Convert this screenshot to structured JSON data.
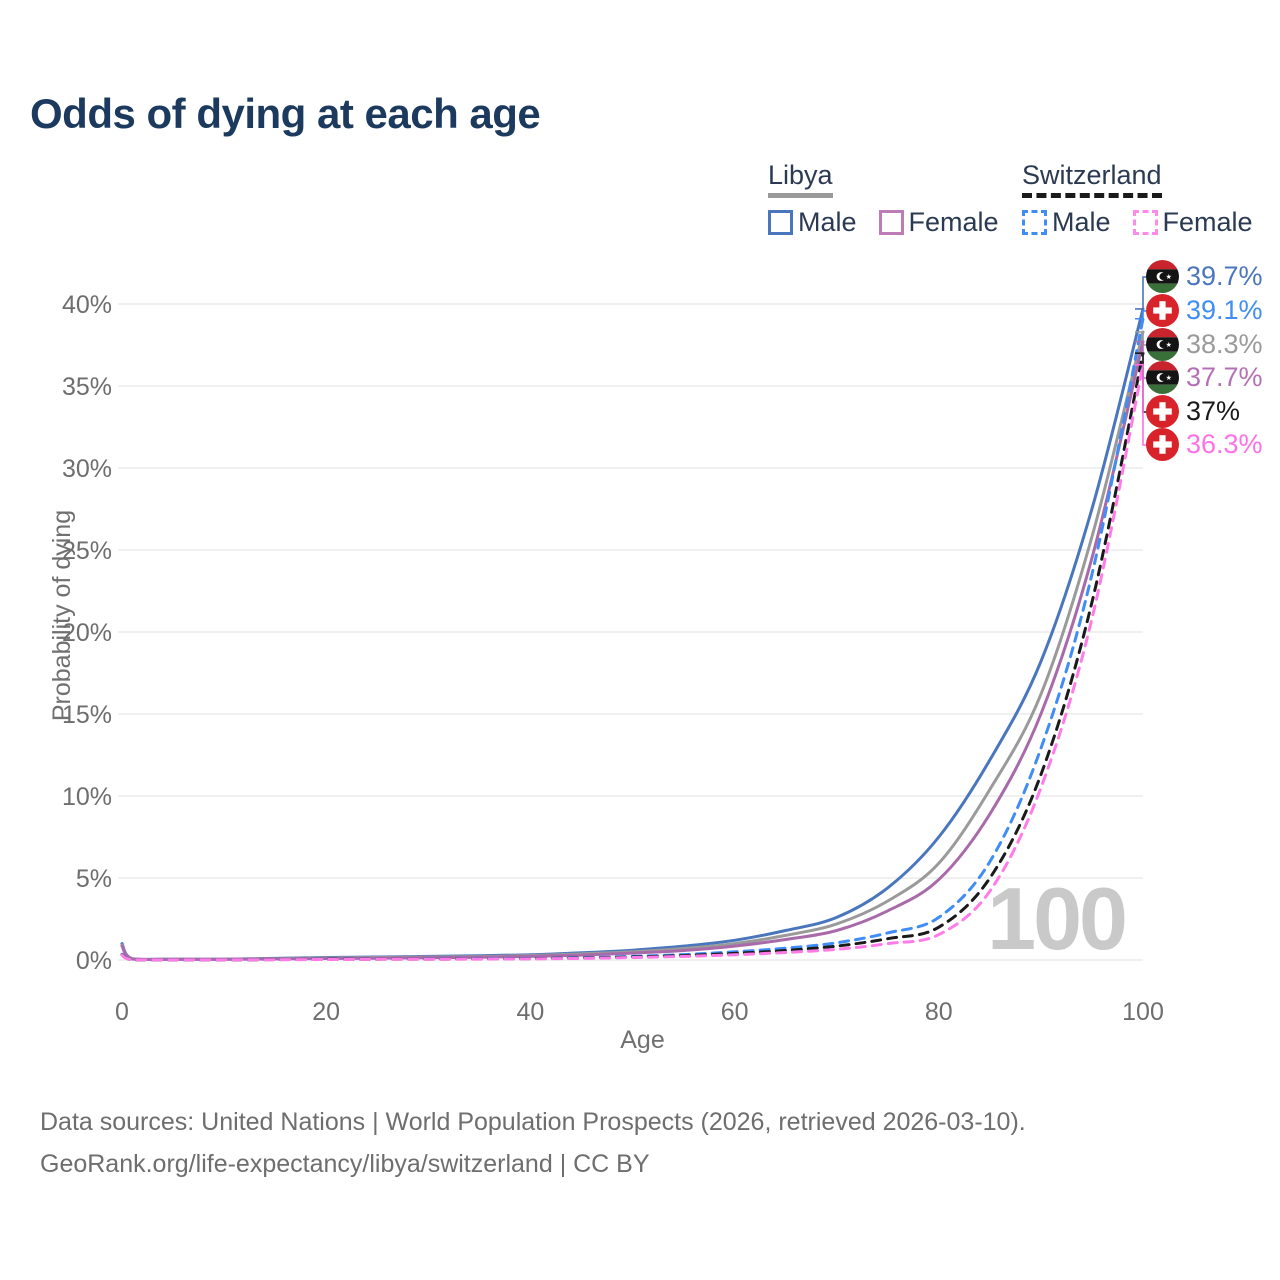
{
  "title": "Odds of dying at each age",
  "legend": {
    "groups": [
      {
        "country": "Libya",
        "line_style": "solid",
        "underline_color": "#9a9a9a",
        "items": [
          {
            "label": "Male",
            "color": "#4a76be"
          },
          {
            "label": "Female",
            "color": "#bd7cb5"
          }
        ]
      },
      {
        "country": "Switzerland",
        "line_style": "dashed",
        "underline_color": "#1a1a1a",
        "items": [
          {
            "label": "Male",
            "color": "#3f8df5"
          },
          {
            "label": "Female",
            "color": "#ff8ae9"
          }
        ]
      }
    ]
  },
  "watermark": "100",
  "axes": {
    "x_title": "Age",
    "y_title": "Probability of dying"
  },
  "chart_data": {
    "type": "line",
    "title": "Odds of dying at each age",
    "xlabel": "Age",
    "ylabel": "Probability of dying",
    "xlim": [
      0,
      100
    ],
    "ylim_pct": [
      0,
      42
    ],
    "x_ticks": [
      0,
      20,
      40,
      60,
      80,
      100
    ],
    "y_ticks_pct": [
      0,
      5,
      10,
      15,
      20,
      25,
      30,
      35,
      40
    ],
    "grid": "horizontal only",
    "legend_position": "top-right",
    "x_sample_ages": [
      0,
      1,
      5,
      10,
      15,
      20,
      25,
      30,
      35,
      40,
      45,
      50,
      55,
      60,
      65,
      70,
      75,
      80,
      85,
      90,
      95,
      100
    ],
    "series": [
      {
        "name": "Libya Male",
        "country": "Libya",
        "sex": "Male",
        "color": "#4a76be",
        "line_style": "solid",
        "values_pct": [
          1.0,
          0.08,
          0.05,
          0.05,
          0.1,
          0.15,
          0.18,
          0.22,
          0.26,
          0.32,
          0.44,
          0.6,
          0.85,
          1.2,
          1.8,
          2.6,
          4.4,
          7.5,
          12.2,
          18.2,
          27.5,
          39.7
        ]
      },
      {
        "name": "Libya Both sexes",
        "country": "Libya",
        "sex": "Both",
        "color": "#9a9a9a",
        "line_style": "solid",
        "values_pct": [
          0.9,
          0.07,
          0.045,
          0.045,
          0.08,
          0.12,
          0.15,
          0.18,
          0.21,
          0.27,
          0.37,
          0.5,
          0.7,
          1.0,
          1.5,
          2.2,
          3.6,
          5.9,
          10.4,
          16.2,
          25.8,
          38.3
        ]
      },
      {
        "name": "Libya Female",
        "country": "Libya",
        "sex": "Female",
        "color": "#a96aaa",
        "line_style": "solid",
        "values_pct": [
          0.85,
          0.06,
          0.04,
          0.04,
          0.06,
          0.09,
          0.11,
          0.14,
          0.17,
          0.22,
          0.3,
          0.42,
          0.58,
          0.85,
          1.25,
          1.8,
          3.0,
          4.9,
          8.9,
          15.0,
          24.5,
          37.7
        ]
      },
      {
        "name": "Switzerland Male",
        "country": "Switzerland",
        "sex": "Male",
        "color": "#3f8df5",
        "line_style": "dashed",
        "values_pct": [
          0.35,
          0.02,
          0.01,
          0.01,
          0.03,
          0.05,
          0.06,
          0.065,
          0.08,
          0.1,
          0.14,
          0.22,
          0.33,
          0.5,
          0.72,
          1.05,
          1.65,
          2.6,
          6.0,
          12.9,
          23.5,
          39.1
        ]
      },
      {
        "name": "Switzerland Both sexes",
        "country": "Switzerland",
        "sex": "Both",
        "color": "#1a1a1a",
        "line_style": "dashed",
        "values_pct": [
          0.32,
          0.018,
          0.009,
          0.009,
          0.025,
          0.04,
          0.05,
          0.055,
          0.065,
          0.085,
          0.12,
          0.18,
          0.27,
          0.4,
          0.58,
          0.85,
          1.3,
          2.0,
          5.0,
          11.3,
          21.8,
          37.0
        ]
      },
      {
        "name": "Switzerland Female",
        "country": "Switzerland",
        "sex": "Female",
        "color": "#ff7ce8",
        "line_style": "dashed",
        "values_pct": [
          0.3,
          0.016,
          0.008,
          0.008,
          0.02,
          0.03,
          0.04,
          0.045,
          0.055,
          0.07,
          0.1,
          0.15,
          0.22,
          0.32,
          0.46,
          0.65,
          1.0,
          1.55,
          4.2,
          10.5,
          20.8,
          36.3
        ]
      }
    ],
    "age_marker": "100"
  },
  "annotations": [
    {
      "series": "Libya Male",
      "flag": "libya",
      "value": "39.7%",
      "end_value_pct": 39.7,
      "color": "#4a76be"
    },
    {
      "series": "Switzerland Male",
      "flag": "switzerland",
      "value": "39.1%",
      "end_value_pct": 39.1,
      "color": "#3f8df5"
    },
    {
      "series": "Libya Both sexes",
      "flag": "libya",
      "value": "38.3%",
      "end_value_pct": 38.3,
      "color": "#9a9a9a"
    },
    {
      "series": "Libya Female",
      "flag": "libya",
      "value": "37.7%",
      "end_value_pct": 37.7,
      "color": "#b470b4"
    },
    {
      "series": "Switzerland Both sexes",
      "flag": "switzerland",
      "value": "37%",
      "end_value_pct": 37.0,
      "color": "#1a1a1a"
    },
    {
      "series": "Switzerland Female",
      "flag": "switzerland",
      "value": "36.3%",
      "end_value_pct": 36.3,
      "color": "#ff70e8"
    }
  ],
  "footer": {
    "line1": "Data sources: United Nations | World Population Prospects (2026, retrieved 2026-03-10).",
    "line2": "GeoRank.org/life-expectancy/libya/switzerland | CC BY"
  }
}
